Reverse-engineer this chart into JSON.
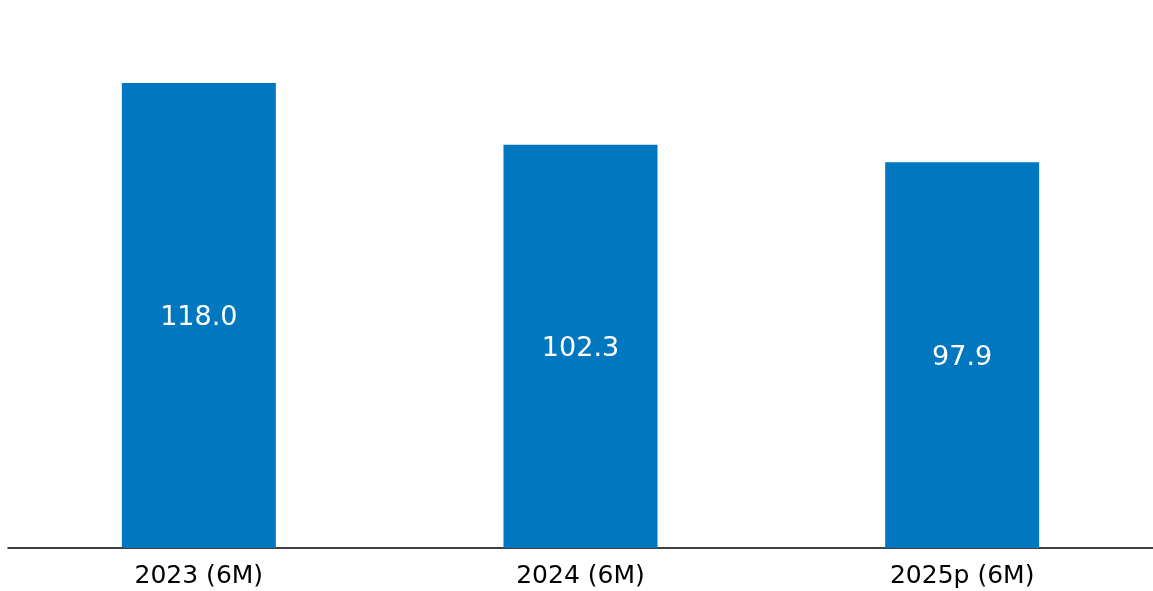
{
  "chart_data": {
    "type": "bar",
    "categories": [
      "2023 (6M)",
      "2024 (6M)",
      "2025p (6M)"
    ],
    "values": [
      118.0,
      102.3,
      97.9
    ],
    "value_labels": [
      "118.0",
      "102.3",
      "97.9"
    ],
    "color": "#0077be"
  }
}
